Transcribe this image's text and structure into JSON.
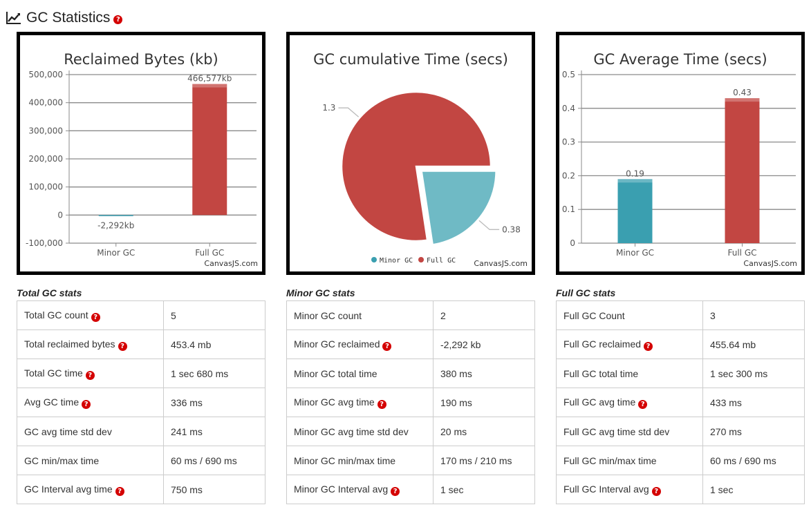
{
  "header": {
    "title": "GC Statistics",
    "help_icon": "?"
  },
  "credit": "CanvasJS.com",
  "colors": {
    "minor": "#3a9fb0",
    "full": "#c24642",
    "minor_pie": "#6fbac5"
  },
  "charts": {
    "reclaimed": {
      "title": "Reclaimed Bytes (kb)"
    },
    "cumulative": {
      "title": "GC cumulative Time (secs)"
    },
    "average": {
      "title": "GC Average Time (secs)"
    }
  },
  "chart_data": [
    {
      "type": "bar",
      "title": "Reclaimed Bytes (kb)",
      "categories": [
        "Minor GC",
        "Full GC"
      ],
      "values": [
        -2292,
        466577
      ],
      "data_labels": [
        "-2,292kb",
        "466,577kb"
      ],
      "ylim": [
        -100000,
        500000
      ],
      "yticks": [
        "-100,000",
        "0",
        "100,000",
        "200,000",
        "300,000",
        "400,000",
        "500,000"
      ],
      "ytick_values": [
        -100000,
        0,
        100000,
        200000,
        300000,
        400000,
        500000
      ],
      "grid": true
    },
    {
      "type": "pie",
      "title": "GC cumulative Time (secs)",
      "categories": [
        "Minor GC",
        "Full GC"
      ],
      "values": [
        0.38,
        1.3
      ],
      "data_labels": [
        "0.38",
        "1.3"
      ],
      "legend": [
        "Minor GC",
        "Full GC"
      ],
      "legend_position": "bottom"
    },
    {
      "type": "bar",
      "title": "GC Average Time (secs)",
      "categories": [
        "Minor GC",
        "Full GC"
      ],
      "values": [
        0.19,
        0.43
      ],
      "data_labels": [
        "0.19",
        "0.43"
      ],
      "ylim": [
        0,
        0.5
      ],
      "yticks": [
        "0",
        "0.1",
        "0.2",
        "0.3",
        "0.4",
        "0.5"
      ],
      "ytick_values": [
        0,
        0.1,
        0.2,
        0.3,
        0.4,
        0.5
      ],
      "grid": true
    }
  ],
  "tables": [
    {
      "caption": "Total GC stats",
      "rows": [
        {
          "label": "Total GC count",
          "value": "5",
          "help": true
        },
        {
          "label": "Total reclaimed bytes",
          "value": "453.4 mb",
          "help": true
        },
        {
          "label": "Total GC time",
          "value": "1 sec 680 ms",
          "help": true
        },
        {
          "label": "Avg GC time",
          "value": "336 ms",
          "help": true
        },
        {
          "label": "GC avg time std dev",
          "value": "241 ms",
          "help": false
        },
        {
          "label": "GC min/max time",
          "value": "60 ms / 690 ms",
          "help": false
        },
        {
          "label": "GC Interval avg time",
          "value": "750 ms",
          "help": true
        }
      ]
    },
    {
      "caption": "Minor GC stats",
      "rows": [
        {
          "label": "Minor GC count",
          "value": "2",
          "help": false
        },
        {
          "label": "Minor GC reclaimed",
          "value": "-2,292 kb",
          "help": true
        },
        {
          "label": "Minor GC total time",
          "value": "380 ms",
          "help": false
        },
        {
          "label": "Minor GC avg time",
          "value": "190 ms",
          "help": true
        },
        {
          "label": "Minor GC avg time std dev",
          "value": "20 ms",
          "help": false
        },
        {
          "label": "Minor GC min/max time",
          "value": "170 ms / 210 ms",
          "help": false
        },
        {
          "label": "Minor GC Interval avg",
          "value": "1 sec",
          "help": true
        }
      ]
    },
    {
      "caption": "Full GC stats",
      "rows": [
        {
          "label": "Full GC Count",
          "value": "3",
          "help": false
        },
        {
          "label": "Full GC reclaimed",
          "value": "455.64 mb",
          "help": true
        },
        {
          "label": "Full GC total time",
          "value": "1 sec 300 ms",
          "help": false
        },
        {
          "label": "Full GC avg time",
          "value": "433 ms",
          "help": true
        },
        {
          "label": "Full GC avg time std dev",
          "value": "270 ms",
          "help": false
        },
        {
          "label": "Full GC min/max time",
          "value": "60 ms / 690 ms",
          "help": false
        },
        {
          "label": "Full GC Interval avg",
          "value": "1 sec",
          "help": true
        }
      ]
    }
  ]
}
